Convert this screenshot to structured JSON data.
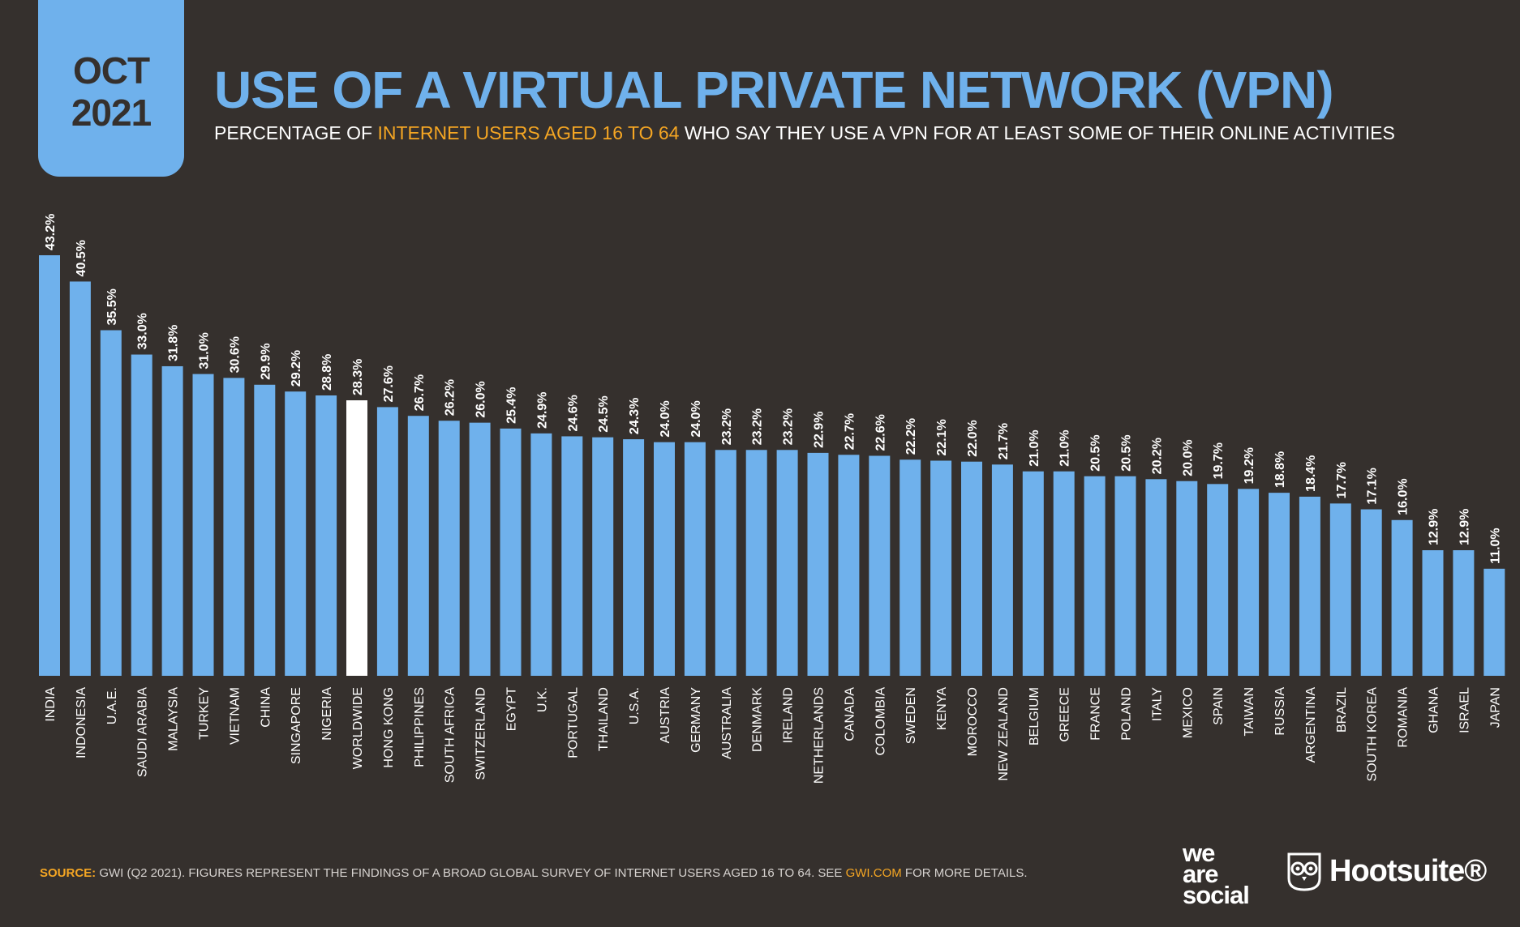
{
  "badge": {
    "month": "OCT",
    "year": "2021"
  },
  "title": "USE OF A VIRTUAL PRIVATE NETWORK (VPN)",
  "subtitle": {
    "part1": "PERCENTAGE OF ",
    "highlight": "INTERNET USERS AGED 16 TO 64",
    "part2": " WHO SAY THEY USE A VPN FOR AT LEAST SOME OF THEIR ONLINE ACTIVITIES"
  },
  "watermark": {
    "was": "we are social",
    "hootsuite": "Hootsuite",
    "gwi": "GWI."
  },
  "source": {
    "label": "SOURCE:",
    "text": " GWI (Q2 2021). FIGURES REPRESENT THE FINDINGS OF A BROAD GLOBAL SURVEY OF INTERNET USERS AGED 16 TO 64. SEE ",
    "link": "GWI.COM",
    "tail": " FOR MORE DETAILS."
  },
  "logos": {
    "we_are_social": [
      "we",
      "are",
      "social"
    ],
    "hootsuite": "Hootsuite®"
  },
  "colors": {
    "bar": "#6fb1ec",
    "highlight_bar": "#ffffff",
    "background": "#35302d",
    "accent": "#f5a623"
  },
  "chart_data": {
    "type": "bar",
    "title": "USE OF A VIRTUAL PRIVATE NETWORK (VPN)",
    "xlabel": "",
    "ylabel": "",
    "ylim": [
      0,
      45
    ],
    "highlight": "WORLDWIDE",
    "categories": [
      "INDIA",
      "INDONESIA",
      "U.A.E.",
      "SAUDI ARABIA",
      "MALAYSIA",
      "TURKEY",
      "VIETNAM",
      "CHINA",
      "SINGAPORE",
      "NIGERIA",
      "WORLDWIDE",
      "HONG KONG",
      "PHILIPPINES",
      "SOUTH AFRICA",
      "SWITZERLAND",
      "EGYPT",
      "U.K.",
      "PORTUGAL",
      "THAILAND",
      "U.S.A.",
      "AUSTRIA",
      "GERMANY",
      "AUSTRALIA",
      "DENMARK",
      "IRELAND",
      "NETHERLANDS",
      "CANADA",
      "COLOMBIA",
      "SWEDEN",
      "KENYA",
      "MOROCCO",
      "NEW ZEALAND",
      "BELGIUM",
      "GREECE",
      "FRANCE",
      "POLAND",
      "ITALY",
      "MEXICO",
      "SPAIN",
      "TAIWAN",
      "RUSSIA",
      "ARGENTINA",
      "BRAZIL",
      "SOUTH KOREA",
      "ROMANIA",
      "GHANA",
      "ISRAEL",
      "JAPAN"
    ],
    "values": [
      43.2,
      40.5,
      35.5,
      33.0,
      31.8,
      31.0,
      30.6,
      29.9,
      29.2,
      28.8,
      28.3,
      27.6,
      26.7,
      26.2,
      26.0,
      25.4,
      24.9,
      24.6,
      24.5,
      24.3,
      24.0,
      24.0,
      23.2,
      23.2,
      23.2,
      22.9,
      22.7,
      22.6,
      22.2,
      22.1,
      22.0,
      21.7,
      21.0,
      21.0,
      20.5,
      20.5,
      20.2,
      20.0,
      19.7,
      19.2,
      18.8,
      18.4,
      17.7,
      17.1,
      16.0,
      12.9,
      12.9,
      11.0
    ],
    "value_labels": [
      "43.2%",
      "40.5%",
      "35.5%",
      "33.0%",
      "31.8%",
      "31.0%",
      "30.6%",
      "29.9%",
      "29.2%",
      "28.8%",
      "28.3%",
      "27.6%",
      "26.7%",
      "26.2%",
      "26.0%",
      "25.4%",
      "24.9%",
      "24.6%",
      "24.5%",
      "24.3%",
      "24.0%",
      "24.0%",
      "23.2%",
      "23.2%",
      "23.2%",
      "22.9%",
      "22.7%",
      "22.6%",
      "22.2%",
      "22.1%",
      "22.0%",
      "21.7%",
      "21.0%",
      "21.0%",
      "20.5%",
      "20.5%",
      "20.2%",
      "20.0%",
      "19.7%",
      "19.2%",
      "18.8%",
      "18.4%",
      "17.7%",
      "17.1%",
      "16.0%",
      "12.9%",
      "12.9%",
      "11.0%"
    ]
  }
}
